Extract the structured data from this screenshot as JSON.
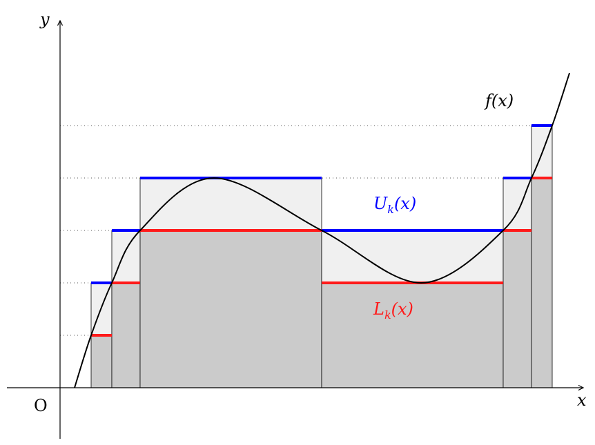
{
  "axes": {
    "x_label": "x",
    "y_label": "y",
    "origin_label": "O"
  },
  "curve_label": "f(x)",
  "upper_label": {
    "main": "U",
    "sub": "k",
    "arg": "(x)"
  },
  "lower_label": {
    "main": "L",
    "sub": "k",
    "arg": "(x)"
  },
  "colors": {
    "upper": "#0000ff",
    "lower": "#ff1a1a",
    "lower_fill": "#cbcbcb",
    "upper_fill": "#f0f0f0",
    "curve": "#000000"
  }
}
